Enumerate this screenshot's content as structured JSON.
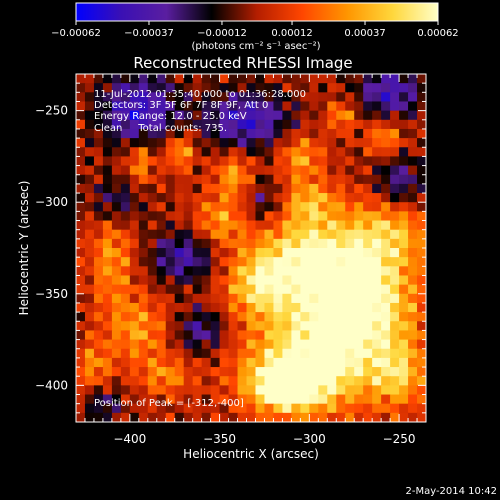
{
  "chart_data": {
    "type": "heatmap",
    "title": "Reconstructed RHESSI Image",
    "xlabel": "Heliocentric X (arcsec)",
    "ylabel": "Heliocentric Y (arcsec)",
    "xlim": [
      -430,
      -235
    ],
    "ylim": [
      -420,
      -230
    ],
    "x_ticks": [
      -400,
      -350,
      -300,
      -250
    ],
    "y_ticks": [
      -250,
      -300,
      -350,
      -400
    ],
    "x_tick_labels": [
      "−400",
      "−350",
      "−300",
      "−250"
    ],
    "y_tick_labels": [
      "−250",
      "−300",
      "−350",
      "−400"
    ],
    "colorbar": {
      "range": [
        -0.00062,
        0.00062
      ],
      "tick_values": [
        -0.00062,
        -0.00037,
        -0.00012,
        0.00012,
        0.00037,
        0.00062
      ],
      "tick_labels": [
        "−0.00062",
        "−0.00037",
        "−0.00012",
        "0.00012",
        "0.00037",
        "0.00062"
      ],
      "colormap": [
        "#0000ff",
        "#3a10b4",
        "#5a1ea0",
        "#000000",
        "#b41e00",
        "#ff4600",
        "#ff9600",
        "#ffd73c",
        "#ffffc8"
      ]
    },
    "units_label": "(photons cm⁻² s⁻¹ asec⁻²)",
    "annotations": [
      "11-Jul-2012 01:35:40.000 to 01:36:28.000",
      "Detectors: 3F 5F 6F 7F 8F 9F, Att 0",
      "Energy Range: 12.0 - 25.0 keV",
      "Clean     Total counts: 735."
    ],
    "peak_label": "Position of Peak = [-312,-400]",
    "peak_position": [
      -312,
      -400
    ],
    "grid": false
  },
  "footer": {
    "date": "2-May-2014 10:42"
  }
}
